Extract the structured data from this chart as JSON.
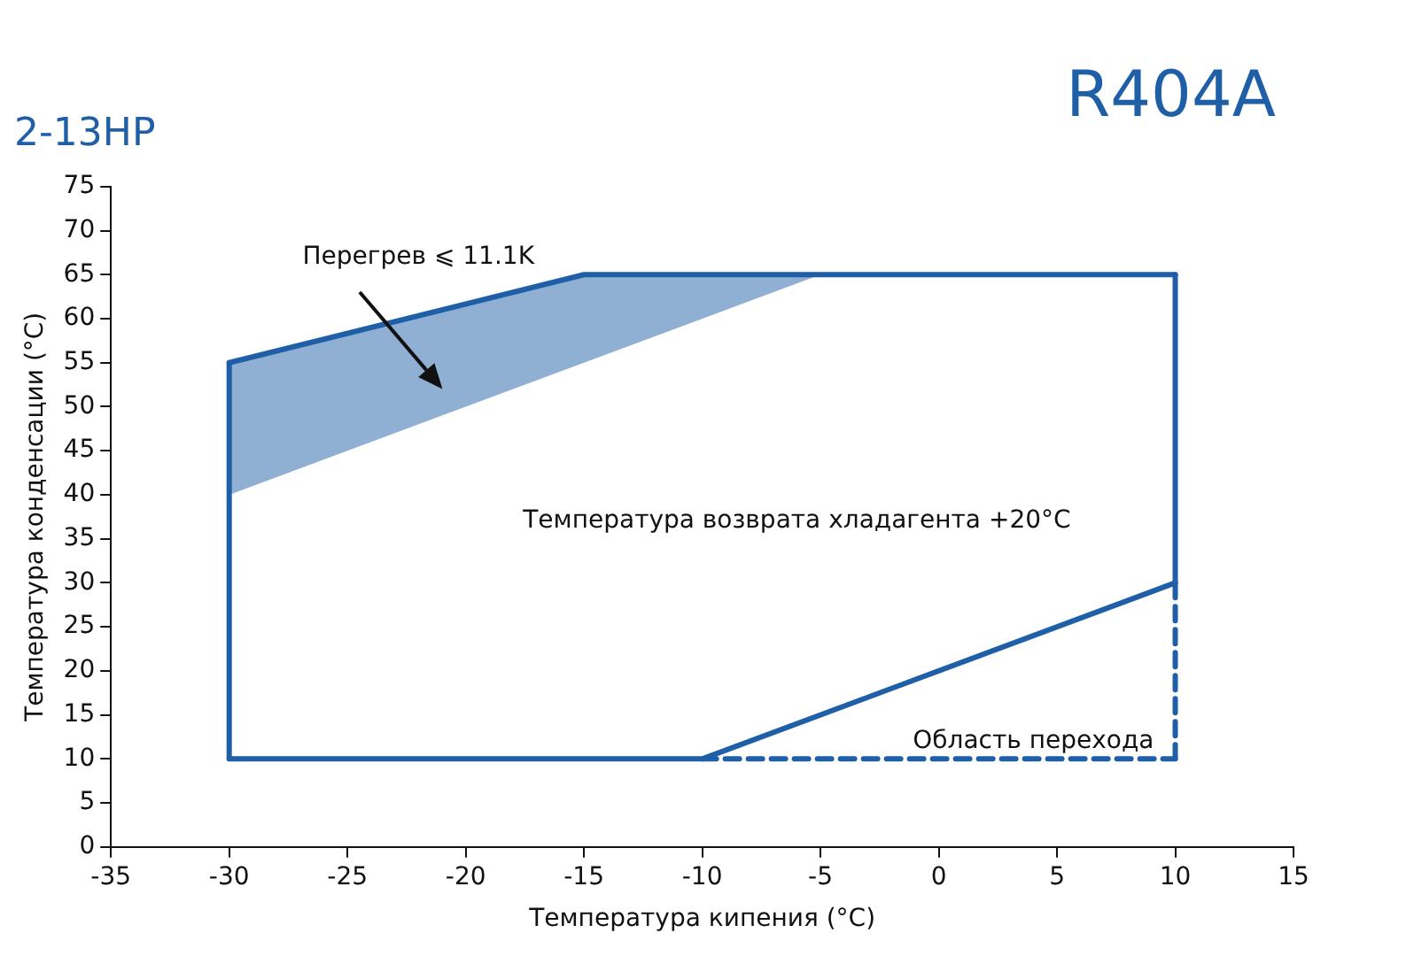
{
  "chart_data": {
    "type": "line",
    "title": "2-13HP",
    "xlabel": "Температура кипения (°C)",
    "ylabel": "Температура конденсации (°C)",
    "xlim": [
      -35,
      15
    ],
    "xticks": [
      -35,
      -30,
      -25,
      -20,
      -15,
      -10,
      -5,
      0,
      5,
      10,
      15
    ],
    "ylim": [
      0,
      75
    ],
    "yticks": [
      0,
      5,
      10,
      15,
      20,
      25,
      30,
      35,
      40,
      45,
      50,
      55,
      60,
      65,
      70,
      75
    ],
    "grid": false,
    "legend": false,
    "marker": "none",
    "series": [
      {
        "color": "#1f5fa8",
        "line_style": "solid",
        "x": [
          -30,
          -15,
          -5,
          10
        ],
        "values": [
          55,
          65,
          65,
          65
        ],
        "lower": [
          40,
          55,
          65,
          null
        ],
        "upper": [
          55,
          65,
          65,
          null
        ]
      },
      {
        "color": "#1f5fa8",
        "line_style": "solid",
        "x": [
          -30,
          -10,
          10
        ],
        "values": [
          10,
          10,
          30
        ]
      },
      {
        "color": "#1f5fa8",
        "line_style": "solid",
        "x": [
          -30,
          -30
        ],
        "values": [
          10,
          55
        ]
      },
      {
        "color": "#1f5fa8",
        "line_style": "solid",
        "x": [
          10,
          10
        ],
        "values": [
          30,
          65
        ]
      },
      {
        "color": "#1f5fa8",
        "line_style": "dashed",
        "x": [
          -10,
          10
        ],
        "values": [
          10,
          10
        ]
      },
      {
        "color": "#1f5fa8",
        "line_style": "dashed",
        "x": [
          10,
          10
        ],
        "values": [
          10,
          30
        ]
      }
    ],
    "annotations": [
      "R404A",
      "Перегрев ⩽ 11.1K",
      "Температура возврата хладагента +20°C",
      "Область перехода"
    ]
  }
}
